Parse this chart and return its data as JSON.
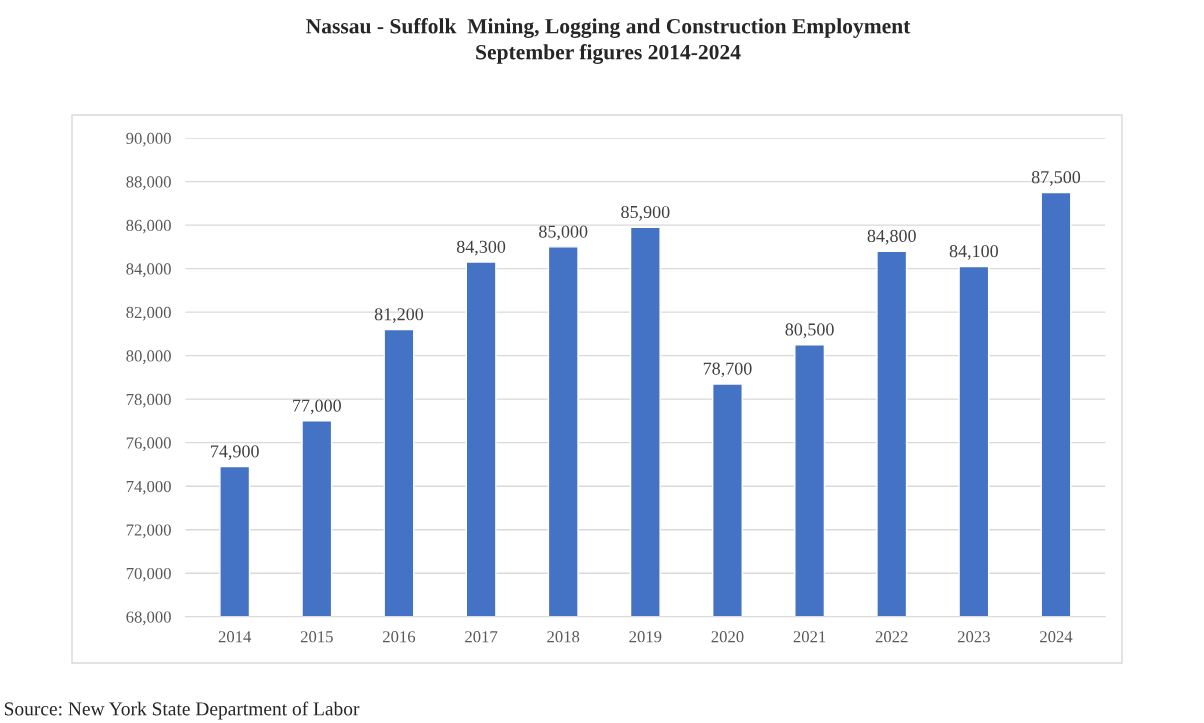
{
  "chart_data": {
    "type": "bar",
    "title": "Nassau - Suffolk  Mining, Logging and Construction Employment\nSeptember figures 2014-2024",
    "categories": [
      "2014",
      "2015",
      "2016",
      "2017",
      "2018",
      "2019",
      "2020",
      "2021",
      "2022",
      "2023",
      "2024"
    ],
    "values": [
      74900,
      77000,
      81200,
      84300,
      85000,
      85900,
      78700,
      80500,
      84800,
      84100,
      87500
    ],
    "color": "#4472c4",
    "value_labels": [
      "74,900",
      "77,000",
      "81,200",
      "84,300",
      "85,000",
      "85,900",
      "78,700",
      "80,500",
      "84,800",
      "84,100",
      "87,500"
    ],
    "ylim": [
      68000,
      90000
    ],
    "yticks": [
      {
        "value": 68000,
        "label": "68,000"
      },
      {
        "value": 70000,
        "label": "70,000"
      },
      {
        "value": 72000,
        "label": "72,000"
      },
      {
        "value": 74000,
        "label": "74,000"
      },
      {
        "value": 76000,
        "label": "76,000"
      },
      {
        "value": 78000,
        "label": "78,000"
      },
      {
        "value": 80000,
        "label": "80,000"
      },
      {
        "value": 82000,
        "label": "82,000"
      },
      {
        "value": 84000,
        "label": "84,000"
      },
      {
        "value": 86000,
        "label": "86,000"
      },
      {
        "value": 88000,
        "label": "88,000"
      },
      {
        "value": 90000,
        "label": "90,000"
      }
    ],
    "grid": "y",
    "annotations": [
      "Source: New York State Department of Labor"
    ]
  }
}
